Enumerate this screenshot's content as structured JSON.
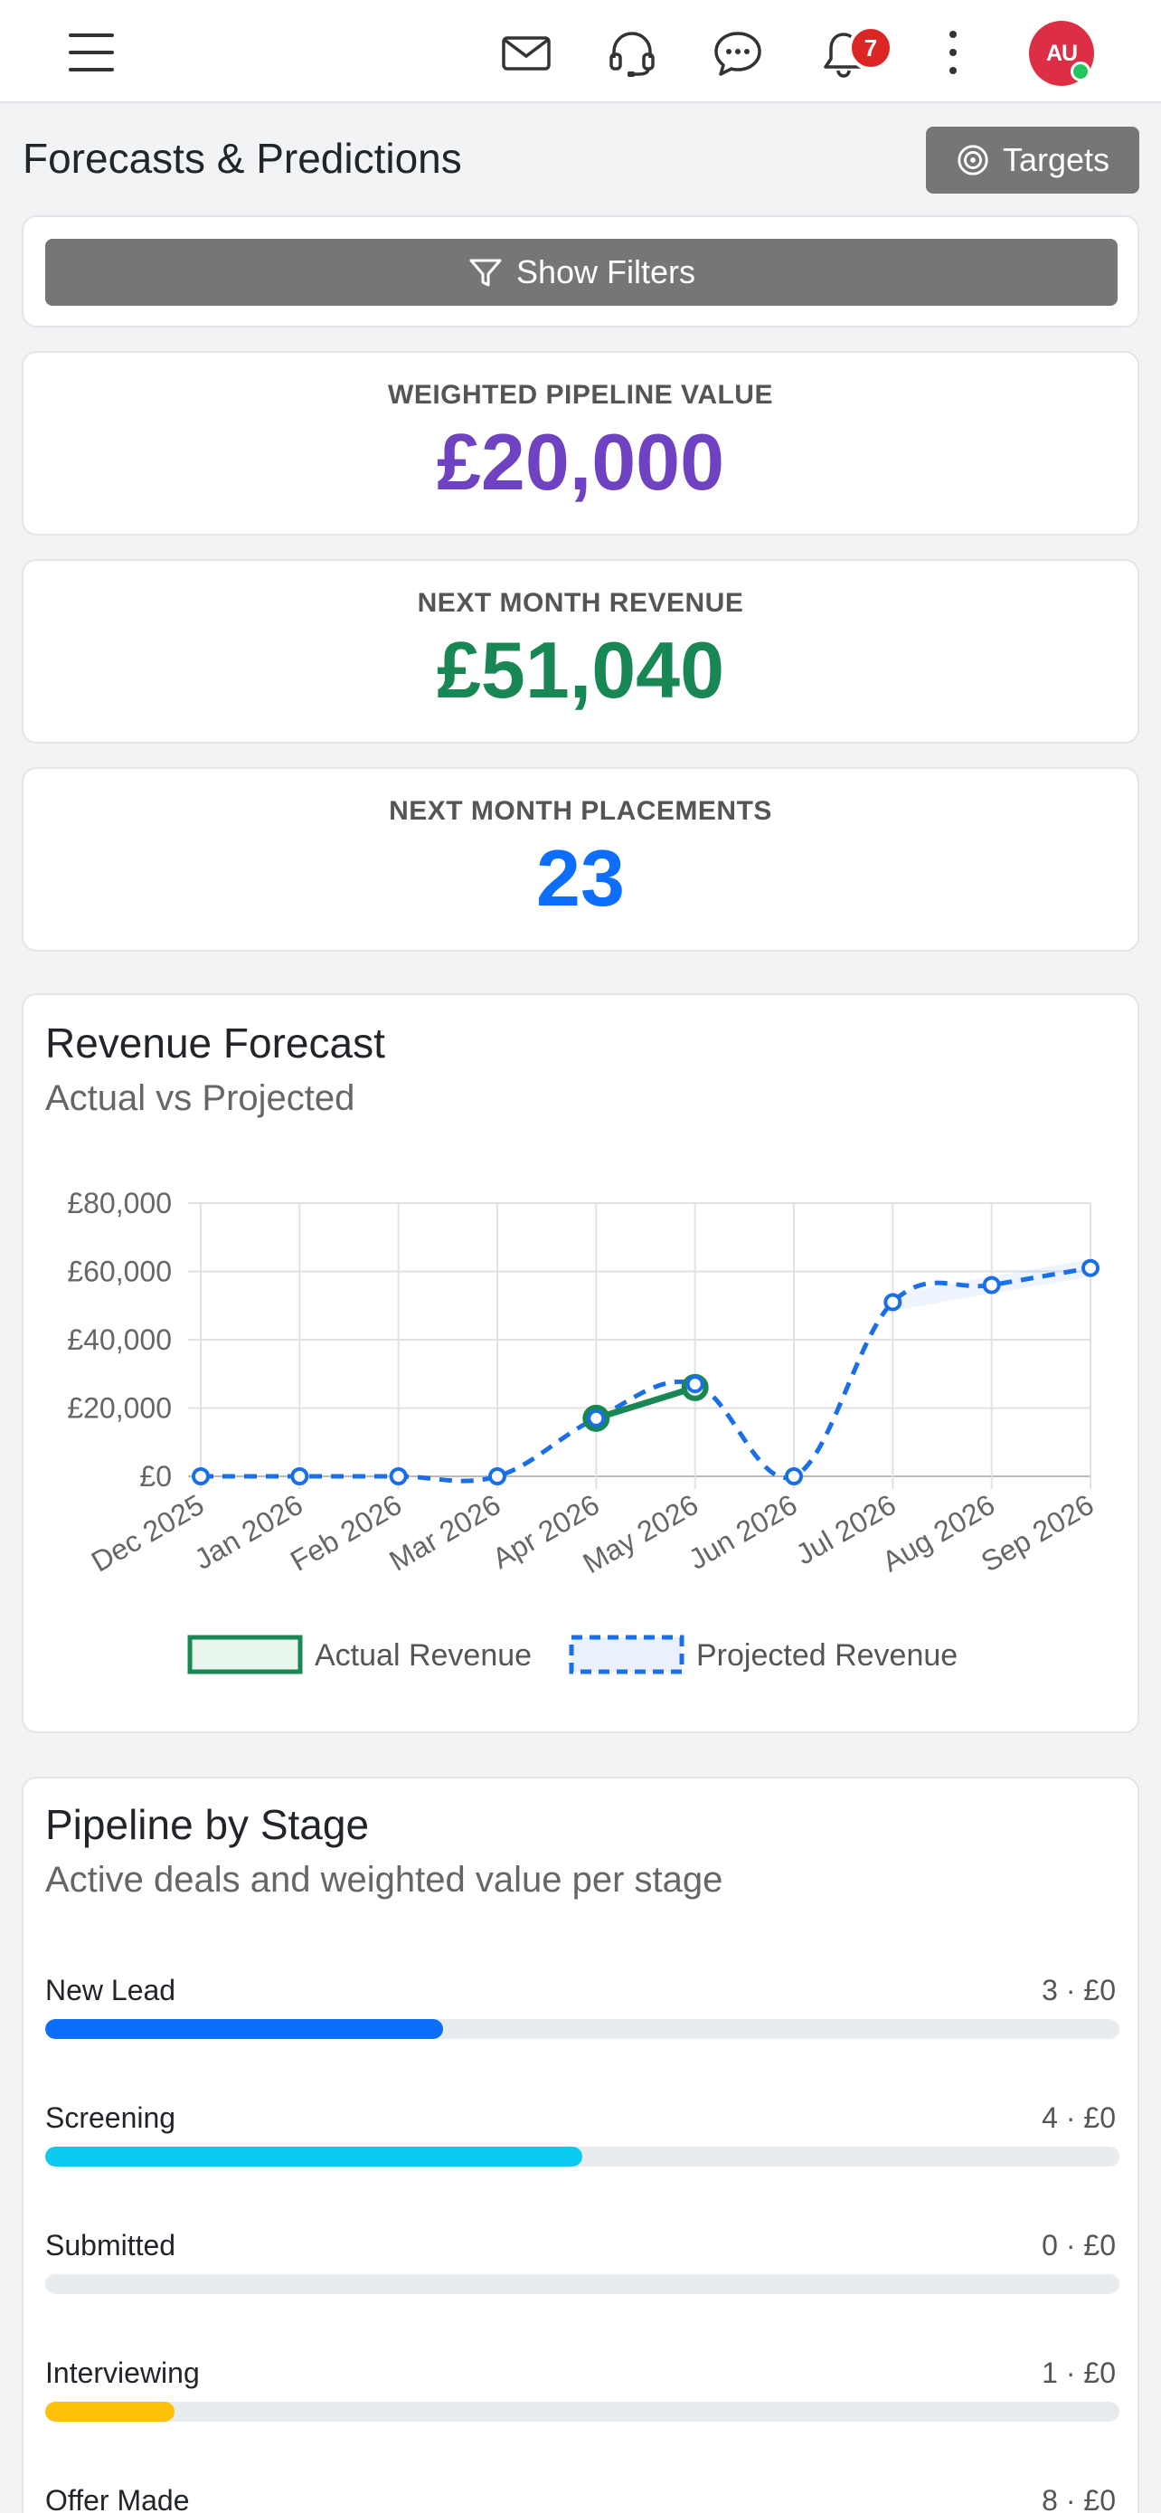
{
  "header": {
    "notification_count": "7",
    "avatar_initials": "AU",
    "icons": [
      "menu-icon",
      "mail-icon",
      "headset-icon",
      "chat-icon",
      "bell-icon",
      "more-vertical-icon"
    ]
  },
  "page": {
    "title": "Forecasts & Predictions",
    "targets_label": "Targets",
    "show_filters_label": "Show Filters"
  },
  "kpis": [
    {
      "label": "WEIGHTED PIPELINE VALUE",
      "value": "£20,000",
      "color": "#6f42c1"
    },
    {
      "label": "NEXT MONTH REVENUE",
      "value": "£51,040",
      "color": "#198754"
    },
    {
      "label": "NEXT MONTH PLACEMENTS",
      "value": "23",
      "color": "#0d6efd"
    }
  ],
  "revenue_chart": {
    "title": "Revenue Forecast",
    "subtitle": "Actual vs Projected"
  },
  "chart_data": {
    "type": "line",
    "title": "Revenue Forecast",
    "subtitle": "Actual vs Projected",
    "categories": [
      "Dec 2025",
      "Jan 2026",
      "Feb 2026",
      "Mar 2026",
      "Apr 2026",
      "May 2026",
      "Jun 2026",
      "Jul 2026",
      "Aug 2026",
      "Sep 2026"
    ],
    "y_ticks": [
      "£0",
      "£20,000",
      "£40,000",
      "£60,000",
      "£80,000"
    ],
    "ylim": [
      0,
      80000
    ],
    "grid": true,
    "legend_position": "bottom",
    "series": [
      {
        "name": "Actual Revenue",
        "values": [
          null,
          null,
          null,
          null,
          17000,
          26000,
          null,
          null,
          null,
          null
        ],
        "color": "#198754",
        "style": "solid"
      },
      {
        "name": "Projected Revenue",
        "values": [
          0,
          0,
          0,
          0,
          17000,
          27000,
          0,
          51000,
          56000,
          61000
        ],
        "color": "#1a6ee8",
        "style": "dashed"
      }
    ]
  },
  "pipeline": {
    "title": "Pipeline by Stage",
    "subtitle": "Active deals and weighted value per stage",
    "stages": [
      {
        "name": "New Lead",
        "value": "3 · £0",
        "fill": 0.37,
        "color": "#0d6efd"
      },
      {
        "name": "Screening",
        "value": "4 · £0",
        "fill": 0.5,
        "color": "#0dcaf0"
      },
      {
        "name": "Submitted",
        "value": "0 · £0",
        "fill": 0,
        "color": "#6c757d"
      },
      {
        "name": "Interviewing",
        "value": "1 · £0",
        "fill": 0.12,
        "color": "#ffc107"
      },
      {
        "name": "Offer Made",
        "value": "8 · £0",
        "fill": 0,
        "color": "#198754"
      }
    ]
  }
}
